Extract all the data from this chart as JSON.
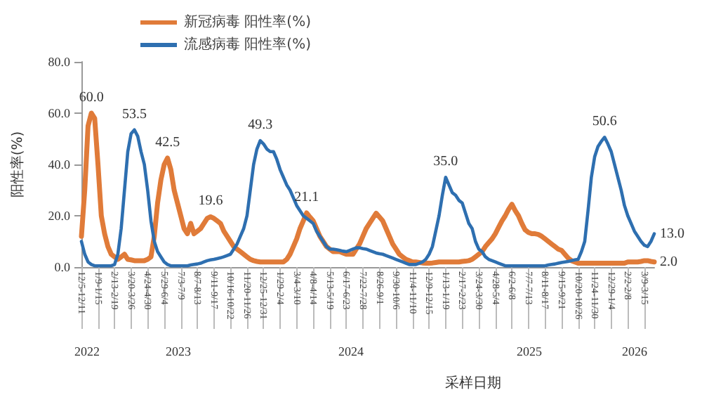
{
  "chart_data": {
    "type": "line",
    "xlabel": "采样日期",
    "ylabel": "阳性率(%)",
    "legend": "top",
    "grid": false,
    "marker": "none",
    "line_style": "solid",
    "ylim": [
      0,
      80
    ],
    "yticks": [
      {
        "value": 0,
        "label": "0.0"
      },
      {
        "value": 20,
        "label": "20.0"
      },
      {
        "value": 40,
        "label": "40.0"
      },
      {
        "value": 60,
        "label": "60.0"
      },
      {
        "value": 80,
        "label": "80.0"
      }
    ],
    "categories": [
      "12/5-12/11",
      null,
      null,
      null,
      null,
      "1/9-1/15",
      null,
      null,
      null,
      null,
      "2/13-2/19",
      null,
      null,
      null,
      null,
      "3/20-3/26",
      null,
      null,
      null,
      null,
      "4/24-4/30",
      null,
      null,
      null,
      null,
      "5/29-6/4",
      null,
      null,
      null,
      null,
      "7/3-7/9",
      null,
      null,
      null,
      null,
      "8/7-8/13",
      null,
      null,
      null,
      null,
      "9/11-9/17",
      null,
      null,
      null,
      null,
      "10/16-10/22",
      null,
      null,
      null,
      null,
      "11/20-11/26",
      null,
      null,
      null,
      null,
      "12/25-12/31",
      null,
      null,
      null,
      null,
      "1/29-2/4",
      null,
      null,
      null,
      null,
      "3/4-3/10",
      null,
      null,
      null,
      null,
      "4/8-4/14",
      null,
      null,
      null,
      null,
      "5/13-5/19",
      null,
      null,
      null,
      null,
      "6/17-6/23",
      null,
      null,
      null,
      null,
      "7/22-7/28",
      null,
      null,
      null,
      null,
      "8/26-9/1",
      null,
      null,
      null,
      null,
      "9/30-10/6",
      null,
      null,
      null,
      null,
      "11/4-11/10",
      null,
      null,
      null,
      null,
      "12/9-12/15",
      null,
      null,
      null,
      null,
      "1/13-1/19",
      null,
      null,
      null,
      null,
      "2/17-2/23",
      null,
      null,
      null,
      null,
      "3/24-3/30",
      null,
      null,
      null,
      null,
      "4/28-5/4",
      null,
      null,
      null,
      null,
      "6/2-6/8",
      null,
      null,
      null,
      null,
      "7/7-7/13",
      null,
      null,
      null,
      null,
      "8/11-8/17",
      null,
      null,
      null,
      null,
      "9/15-9/21",
      null,
      null,
      null,
      null,
      "10/20-10/26",
      null,
      null,
      null,
      null,
      "11/24-11/30",
      null,
      null,
      null,
      null,
      "12/29-1/4",
      null,
      null,
      null,
      null,
      "2/2-2/8",
      null,
      null,
      null,
      null,
      "3/9-3/15",
      null,
      null,
      null
    ],
    "series": [
      {
        "name": "新冠病毒 阳性率(%)",
        "color": "#e07b39",
        "values": [
          12,
          30,
          55,
          60,
          58,
          40,
          20,
          13,
          8,
          5,
          4,
          3,
          4,
          5,
          3,
          2.8,
          2.5,
          2.5,
          2.5,
          2.5,
          3,
          4,
          12,
          25,
          34,
          40,
          42.5,
          38,
          30,
          25,
          20,
          15,
          13,
          17,
          13,
          14,
          15,
          17,
          19,
          19.6,
          19,
          18,
          17,
          14,
          12,
          10,
          8,
          7,
          6,
          5,
          4,
          3,
          2.5,
          2.2,
          2,
          2,
          2,
          2,
          2,
          2,
          2,
          2,
          3,
          5,
          8,
          11,
          15,
          18,
          21.1,
          19.5,
          18,
          15,
          12,
          10,
          8,
          7,
          6,
          6,
          6,
          5.5,
          5,
          5,
          5,
          7,
          9,
          12,
          15,
          17,
          19,
          21,
          19.5,
          18,
          15,
          12,
          9,
          7,
          5,
          4,
          3,
          2.5,
          2,
          2,
          1.8,
          1.6,
          1.5,
          1.5,
          1.6,
          1.8,
          2,
          2,
          2,
          2,
          2,
          2,
          2,
          2.2,
          2.3,
          2.5,
          3,
          4,
          5,
          6,
          8,
          9.5,
          11,
          13,
          15.5,
          18,
          20,
          22.5,
          24.5,
          22,
          20,
          17,
          14.5,
          13.5,
          13,
          13,
          12.7,
          12,
          11,
          10,
          9,
          8,
          7,
          6.5,
          5,
          3.5,
          2.5,
          2,
          1.5,
          1.5,
          1.5,
          1.5,
          1.5,
          1.5,
          1.5,
          1.5,
          1.5,
          1.5,
          1.5,
          1.5,
          1.5,
          1.5,
          1.5,
          2,
          2,
          2,
          2,
          2.2,
          2.5,
          2.5,
          2.2,
          2
        ],
        "value_labels": [
          null,
          null,
          null,
          "60.0",
          null,
          null,
          null,
          null,
          null,
          null,
          null,
          null,
          null,
          null,
          null,
          null,
          null,
          null,
          null,
          null,
          null,
          null,
          null,
          null,
          null,
          null,
          "42.5",
          null,
          null,
          null,
          null,
          null,
          null,
          null,
          null,
          null,
          null,
          null,
          null,
          "19.6",
          null,
          null,
          null,
          null,
          null,
          null,
          null,
          null,
          null,
          null,
          null,
          null,
          null,
          null,
          null,
          null,
          null,
          null,
          null,
          null,
          null,
          null,
          null,
          null,
          null,
          null,
          null,
          null,
          "21.1",
          null,
          null,
          null,
          null,
          null,
          null,
          null,
          null,
          null,
          null,
          null,
          null,
          null,
          null,
          null,
          null,
          null,
          null,
          null,
          null,
          null,
          null,
          null,
          null,
          null,
          null,
          null,
          null,
          null,
          null,
          null,
          null,
          null,
          null,
          null,
          null,
          null,
          null,
          null,
          null,
          null,
          null,
          null,
          null,
          null,
          null,
          null,
          null,
          null,
          null,
          null,
          null,
          null,
          null,
          null,
          null,
          null,
          null,
          null,
          null,
          null,
          null,
          null,
          null,
          null,
          null,
          null,
          null,
          null,
          null,
          null,
          null,
          null,
          null,
          null,
          null,
          null,
          null,
          null,
          null,
          null,
          null,
          null,
          null,
          null,
          null,
          null,
          null,
          null,
          null,
          null,
          null,
          null,
          null,
          null,
          null,
          null,
          null,
          null,
          null,
          null,
          null,
          null,
          null,
          "2.0"
        ]
      },
      {
        "name": "流感病毒 阳性率(%)",
        "color": "#2e6fb0",
        "values": [
          10,
          5,
          2,
          1,
          0.5,
          0.5,
          0.5,
          0.5,
          0.5,
          0.5,
          1,
          5,
          15,
          30,
          45,
          52,
          53.5,
          51,
          45,
          40,
          30,
          18,
          10,
          6,
          4,
          2,
          1,
          0.5,
          0.5,
          0.5,
          0.5,
          0.5,
          0.5,
          0.8,
          1,
          1.2,
          1.5,
          2,
          2.5,
          2.8,
          3,
          3.3,
          3.6,
          4,
          4.5,
          5,
          7,
          9,
          12,
          15,
          20,
          30,
          40,
          46,
          49.3,
          48,
          46,
          45,
          45,
          42,
          38,
          35,
          32,
          30,
          27,
          24,
          22,
          20,
          19,
          18,
          17,
          14,
          12,
          10,
          8,
          7,
          7,
          6.8,
          6.5,
          6.2,
          6,
          6.5,
          7,
          7.5,
          7.5,
          7.2,
          7,
          6.5,
          6,
          5.5,
          5.2,
          5,
          4.5,
          4,
          3.5,
          3,
          2.5,
          2,
          1.5,
          1,
          1,
          1,
          1.5,
          2,
          3,
          5,
          8,
          14,
          20,
          28,
          35,
          32,
          29,
          28,
          26,
          25,
          21,
          17,
          15,
          10,
          7,
          6,
          4,
          3,
          2.5,
          2,
          1.5,
          1,
          0.5,
          0.5,
          0.5,
          0.5,
          0.5,
          0.5,
          0.5,
          0.5,
          0.5,
          0.5,
          0.5,
          0.5,
          0.5,
          0.8,
          1,
          1.2,
          1.5,
          1.8,
          2,
          2.2,
          2.5,
          2.8,
          3,
          6,
          10,
          22,
          35,
          43,
          47,
          49,
          50.6,
          48,
          45,
          40,
          35,
          30,
          24,
          20,
          17,
          14,
          12,
          10,
          8.5,
          8,
          10,
          13
        ],
        "value_labels": [
          null,
          null,
          null,
          null,
          null,
          null,
          null,
          null,
          null,
          null,
          null,
          null,
          null,
          null,
          null,
          null,
          "53.5",
          null,
          null,
          null,
          null,
          null,
          null,
          null,
          null,
          null,
          null,
          null,
          null,
          null,
          null,
          null,
          null,
          null,
          null,
          null,
          null,
          null,
          null,
          null,
          null,
          null,
          null,
          null,
          null,
          null,
          null,
          null,
          null,
          null,
          null,
          null,
          null,
          null,
          "49.3",
          null,
          null,
          null,
          null,
          null,
          null,
          null,
          null,
          null,
          null,
          null,
          null,
          null,
          null,
          null,
          null,
          null,
          null,
          null,
          null,
          null,
          null,
          null,
          null,
          null,
          null,
          null,
          null,
          null,
          null,
          null,
          null,
          null,
          null,
          null,
          null,
          null,
          null,
          null,
          null,
          null,
          null,
          null,
          null,
          null,
          null,
          null,
          null,
          null,
          null,
          null,
          null,
          null,
          null,
          null,
          "35.0",
          null,
          null,
          null,
          null,
          null,
          null,
          null,
          null,
          null,
          null,
          null,
          null,
          null,
          null,
          null,
          null,
          null,
          null,
          null,
          null,
          null,
          null,
          null,
          null,
          null,
          null,
          null,
          null,
          null,
          null,
          null,
          null,
          null,
          null,
          null,
          null,
          null,
          null,
          null,
          null,
          null,
          null,
          null,
          null,
          null,
          null,
          null,
          "50.6",
          null,
          null,
          null,
          null,
          null,
          null,
          null,
          null,
          null,
          null,
          null,
          null,
          null,
          null,
          "13.0"
        ]
      }
    ],
    "annotations": [
      "2022",
      "2023",
      "2024",
      "2025",
      "2026"
    ]
  }
}
